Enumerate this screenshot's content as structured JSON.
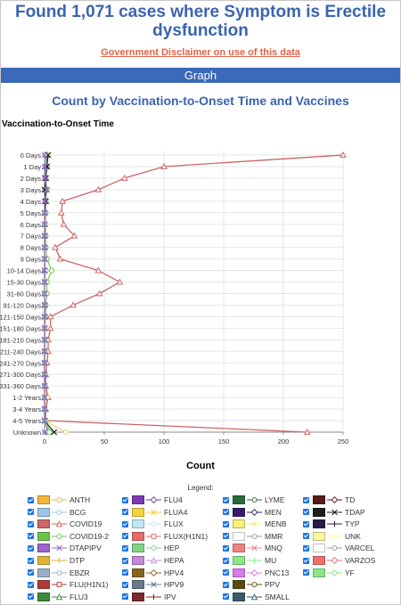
{
  "page": {
    "title": "Found 1,071 cases where Symptom is Erectile dysfunction",
    "disclaimer_link": "Government Disclaimer on use of this data",
    "section_bar": "Graph"
  },
  "chart_data": {
    "type": "line",
    "title": "Count by Vaccination-to-Onset Time and Vaccines",
    "ylabel": "Vaccination-to-Onset Time",
    "xlabel": "Count",
    "xlim": [
      0,
      250
    ],
    "xticks": [
      0,
      50,
      100,
      150,
      200,
      250
    ],
    "grid": true,
    "legend_title": "Legend:",
    "legend_position": "bottom",
    "categories": [
      "0 Days",
      "1 Day",
      "2 Days",
      "3 Days",
      "4 Days",
      "5 Days",
      "6 Days",
      "7 Days",
      "8 Days",
      "9 Days",
      "10-14 Days",
      "15-30 Days",
      "31-60 Days",
      "91-120 Days",
      "121-150 Days",
      "151-180 Days",
      "181-210 Days",
      "211-240 Days",
      "241-270 Days",
      "271-300 Days",
      "331-360 Days",
      "1-2 Years",
      "3-4 Years",
      "4-5 Years",
      "Unknown"
    ],
    "series": [
      {
        "name": "COVID19",
        "color": "#cc6666",
        "marker": "triangle",
        "values": [
          250,
          100,
          67,
          45,
          15,
          14,
          16,
          25,
          9,
          13,
          45,
          63,
          46,
          24,
          5,
          5,
          3,
          3,
          2,
          1,
          1,
          3,
          1,
          1,
          220
        ]
      },
      {
        "name": "COVID19-2",
        "color": "#6cc64b",
        "marker": "circle",
        "values": [
          2,
          2,
          1,
          2,
          1,
          1,
          1,
          1,
          1,
          2,
          6,
          2,
          2,
          1,
          1,
          0,
          0,
          0,
          0,
          0,
          0,
          0,
          0,
          1,
          5
        ]
      },
      {
        "name": "ANTH",
        "color": "#f2d27a",
        "marker": "circle",
        "values": [
          3,
          1,
          1,
          1,
          1,
          0,
          1,
          0,
          0,
          0,
          1,
          0,
          0,
          0,
          0,
          1,
          0,
          1,
          0,
          0,
          0,
          2,
          0,
          0,
          18
        ]
      },
      {
        "name": "FLU3",
        "color": "#3d8a3d",
        "marker": "triangle",
        "values": [
          2,
          1,
          1,
          1,
          1,
          0,
          0,
          0,
          0,
          0,
          0,
          0,
          0,
          0,
          0,
          0,
          0,
          0,
          0,
          0,
          0,
          0,
          0,
          0,
          3
        ]
      },
      {
        "name": "HEP",
        "color": "#7fd487",
        "marker": "circle",
        "values": [
          1,
          1,
          1,
          0,
          1,
          0,
          0,
          0,
          0,
          0,
          1,
          0,
          0,
          0,
          0,
          0,
          0,
          0,
          0,
          0,
          0,
          0,
          0,
          0,
          4
        ]
      },
      {
        "name": "TDAP",
        "color": "#1e1e1e",
        "marker": "x",
        "values": [
          3,
          2,
          1,
          0,
          1,
          0,
          0,
          0,
          0,
          0,
          0,
          0,
          0,
          0,
          0,
          0,
          0,
          0,
          0,
          0,
          0,
          0,
          0,
          0,
          8
        ]
      },
      {
        "name": "DTAPIPV",
        "color": "#9a66cc",
        "marker": "x",
        "values": [
          0,
          0,
          0,
          2,
          0,
          0,
          0,
          0,
          0,
          0,
          0,
          0,
          0,
          0,
          0,
          0,
          0,
          0,
          0,
          0,
          0,
          0,
          0,
          0,
          0
        ]
      }
    ],
    "legend": [
      {
        "name": "ANTH",
        "color": "#f0b63c",
        "marker": "circle"
      },
      {
        "name": "BCG",
        "color": "#9cc6e8",
        "marker": "circle"
      },
      {
        "name": "COVID19",
        "color": "#cc6666",
        "marker": "triangle"
      },
      {
        "name": "COVID19-2",
        "color": "#6cc64b",
        "marker": "circle"
      },
      {
        "name": "DTAPIPV",
        "color": "#9a66cc",
        "marker": "x"
      },
      {
        "name": "DTP",
        "color": "#e0b43a",
        "marker": "plus"
      },
      {
        "name": "EBZR",
        "color": "#9ab0c8",
        "marker": "circle"
      },
      {
        "name": "FLU(H1N1)",
        "color": "#b03a3a",
        "marker": "square"
      },
      {
        "name": "FLU3",
        "color": "#3d8a3d",
        "marker": "triangle"
      },
      {
        "name": "FLU4",
        "color": "#7a3ab0",
        "marker": "diamond"
      },
      {
        "name": "FLUA4",
        "color": "#f4d23c",
        "marker": "x"
      },
      {
        "name": "FLUX",
        "color": "#bfe8f2",
        "marker": "circle"
      },
      {
        "name": "FLUX(H1N1)",
        "color": "#e86a6a",
        "marker": "square"
      },
      {
        "name": "HEP",
        "color": "#7fd487",
        "marker": "circle"
      },
      {
        "name": "HEPA",
        "color": "#c28ad8",
        "marker": "triangle"
      },
      {
        "name": "HPV4",
        "color": "#8a6420",
        "marker": "diamond"
      },
      {
        "name": "HPV9",
        "color": "#6a7a8a",
        "marker": "x"
      },
      {
        "name": "IPV",
        "color": "#7a2a2a",
        "marker": "plus"
      },
      {
        "name": "LYME",
        "color": "#2a6a3a",
        "marker": "circle"
      },
      {
        "name": "MEN",
        "color": "#3a1a6a",
        "marker": "diamond"
      },
      {
        "name": "MENB",
        "color": "#f8f07a",
        "marker": "x"
      },
      {
        "name": "MMR",
        "color": "#ffffff",
        "marker": "circle"
      },
      {
        "name": "MNQ",
        "color": "#f08080",
        "marker": "x"
      },
      {
        "name": "MU",
        "color": "#8ae88a",
        "marker": "plus"
      },
      {
        "name": "PNC13",
        "color": "#d87ae8",
        "marker": "diamond"
      },
      {
        "name": "PPV",
        "color": "#5a4a10",
        "marker": "circle"
      },
      {
        "name": "SMALL",
        "color": "#3a5a6a",
        "marker": "triangle"
      },
      {
        "name": "TD",
        "color": "#5a1a1a",
        "marker": "diamond"
      },
      {
        "name": "TDAP",
        "color": "#1e1e1e",
        "marker": "x"
      },
      {
        "name": "TYP",
        "color": "#2a1a4a",
        "marker": "plus"
      },
      {
        "name": "UNK",
        "color": "#f8f8a0",
        "marker": "circle"
      },
      {
        "name": "VARCEL",
        "color": "#ffffff",
        "marker": "circle"
      },
      {
        "name": "VARZOS",
        "color": "#f07070",
        "marker": "diamond"
      },
      {
        "name": "YF",
        "color": "#8ae88a",
        "marker": "diamond"
      }
    ]
  }
}
